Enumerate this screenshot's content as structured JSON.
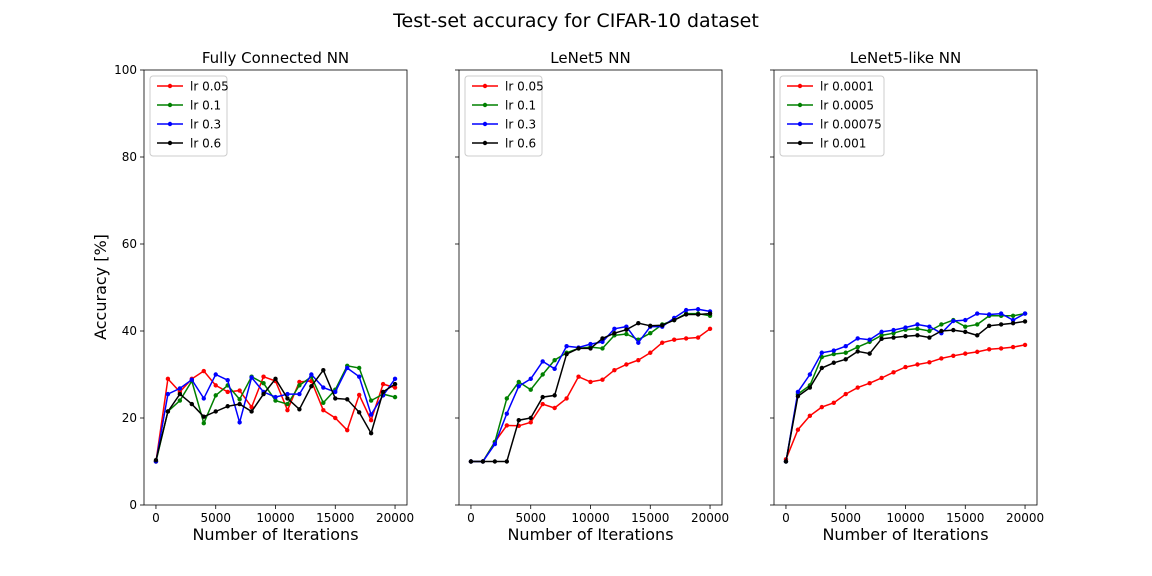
{
  "figure": {
    "title": "Test-set accuracy for CIFAR-10 dataset",
    "ylabel": "Accuracy [%]"
  },
  "chart_data": [
    {
      "type": "line",
      "title": "Fully Connected NN",
      "xlabel": "Number of Iterations",
      "ylabel": "Accuracy [%]",
      "xlim": [
        -1000,
        21000
      ],
      "ylim": [
        0,
        100
      ],
      "xticks": [
        0,
        5000,
        10000,
        15000,
        20000
      ],
      "yticks": [
        0,
        20,
        40,
        60,
        80,
        100
      ],
      "legend_position": "top-left",
      "x": [
        0,
        1000,
        2000,
        3000,
        4000,
        5000,
        6000,
        7000,
        8000,
        9000,
        10000,
        11000,
        12000,
        13000,
        14000,
        15000,
        16000,
        17000,
        18000,
        19000,
        20000
      ],
      "series": [
        {
          "name": "lr 0.05",
          "color": "#ff0000",
          "values": [
            10,
            29,
            26,
            29,
            30.8,
            27.5,
            26,
            26.3,
            22.5,
            29.5,
            28.5,
            21.8,
            28.3,
            28.5,
            21.8,
            20,
            17.2,
            25.3,
            19.5,
            27.8,
            27
          ]
        },
        {
          "name": "lr 0.1",
          "color": "#008000",
          "values": [
            10,
            21.5,
            24,
            28.5,
            18.8,
            25.2,
            27.5,
            24.3,
            29.5,
            28,
            24,
            23.2,
            27.5,
            29.5,
            23.5,
            26.5,
            32,
            31.5,
            24,
            25.5,
            24.8
          ]
        },
        {
          "name": "lr 0.3",
          "color": "#0000ff",
          "values": [
            10,
            25.5,
            26.8,
            28.8,
            24.5,
            30,
            28.7,
            19,
            29.3,
            26,
            24.8,
            25.5,
            25.5,
            30,
            27,
            26,
            31.5,
            29.5,
            20.8,
            25.2,
            29
          ]
        },
        {
          "name": "lr 0.6",
          "color": "#000000",
          "values": [
            10.3,
            21.5,
            25.5,
            23.2,
            20.3,
            21.5,
            22.7,
            23.2,
            21.5,
            25.5,
            29,
            24.5,
            22,
            27.3,
            31,
            24.5,
            24.3,
            21.3,
            16.5,
            26,
            27.8
          ]
        }
      ]
    },
    {
      "type": "line",
      "title": "LeNet5 NN",
      "xlabel": "Number of Iterations",
      "xlim": [
        -1000,
        21000
      ],
      "ylim": [
        0,
        100
      ],
      "xticks": [
        0,
        5000,
        10000,
        15000,
        20000
      ],
      "legend_position": "top-left",
      "x": [
        0,
        1000,
        2000,
        3000,
        4000,
        5000,
        6000,
        7000,
        8000,
        9000,
        10000,
        11000,
        12000,
        13000,
        14000,
        15000,
        16000,
        17000,
        18000,
        19000,
        20000
      ],
      "series": [
        {
          "name": "lr 0.05",
          "color": "#ff0000",
          "values": [
            10,
            10,
            14.5,
            18.3,
            18.2,
            19,
            23.2,
            22.3,
            24.5,
            29.5,
            28.3,
            28.8,
            31,
            32.3,
            33.3,
            35,
            37.3,
            38,
            38.3,
            38.5,
            40.5
          ]
        },
        {
          "name": "lr 0.1",
          "color": "#008000",
          "values": [
            10,
            10,
            14.5,
            24.5,
            28.3,
            26.5,
            30,
            33.3,
            35,
            36,
            36.3,
            36,
            39,
            39.3,
            38,
            39.5,
            41.5,
            42.5,
            44,
            44,
            43.5
          ]
        },
        {
          "name": "lr 0.3",
          "color": "#0000ff",
          "values": [
            10,
            10,
            14,
            21,
            27.3,
            29,
            33,
            31.3,
            36.5,
            36.2,
            37,
            37.5,
            40.5,
            41,
            37.3,
            41,
            41,
            43,
            44.8,
            45,
            44.5
          ]
        },
        {
          "name": "lr 0.6",
          "color": "#000000",
          "values": [
            10,
            10,
            10,
            10,
            19.5,
            20,
            24.8,
            25.2,
            34.7,
            36,
            36,
            38.3,
            39.5,
            40.3,
            41.8,
            41.2,
            41.3,
            42.5,
            43.8,
            43.8,
            44
          ]
        }
      ]
    },
    {
      "type": "line",
      "title": "LeNet5-like NN",
      "xlabel": "Number of Iterations",
      "xlim": [
        -1000,
        21000
      ],
      "ylim": [
        0,
        100
      ],
      "xticks": [
        0,
        5000,
        10000,
        15000,
        20000
      ],
      "legend_position": "top-left",
      "x": [
        0,
        1000,
        2000,
        3000,
        4000,
        5000,
        6000,
        7000,
        8000,
        9000,
        10000,
        11000,
        12000,
        13000,
        14000,
        15000,
        16000,
        17000,
        18000,
        19000,
        20000
      ],
      "series": [
        {
          "name": "lr 0.0001",
          "color": "#ff0000",
          "values": [
            10.5,
            17.3,
            20.5,
            22.5,
            23.5,
            25.5,
            27,
            28,
            29.2,
            30.5,
            31.7,
            32.3,
            32.8,
            33.7,
            34.3,
            34.8,
            35.2,
            35.8,
            36,
            36.3,
            36.8
          ]
        },
        {
          "name": "lr 0.0005",
          "color": "#008000",
          "values": [
            10,
            25.5,
            27.5,
            34,
            34.7,
            35,
            36.3,
            37.5,
            39,
            39.5,
            40.3,
            40.5,
            40,
            41.5,
            42.5,
            41,
            41.5,
            43.5,
            43.5,
            43.5,
            44
          ]
        },
        {
          "name": "lr 0.00075",
          "color": "#0000ff",
          "values": [
            10,
            26,
            30,
            35,
            35.5,
            36.5,
            38.3,
            38,
            39.8,
            40.2,
            40.8,
            41.5,
            41,
            39.5,
            42.3,
            42.5,
            44,
            43.8,
            44,
            42.5,
            44
          ]
        },
        {
          "name": "lr 0.001",
          "color": "#000000",
          "values": [
            10,
            25,
            27,
            31.5,
            32.7,
            33.5,
            35.3,
            34.8,
            38.2,
            38.5,
            38.8,
            39,
            38.5,
            40,
            40.2,
            39.8,
            39,
            41.2,
            41.5,
            41.8,
            42.2
          ]
        }
      ]
    }
  ]
}
